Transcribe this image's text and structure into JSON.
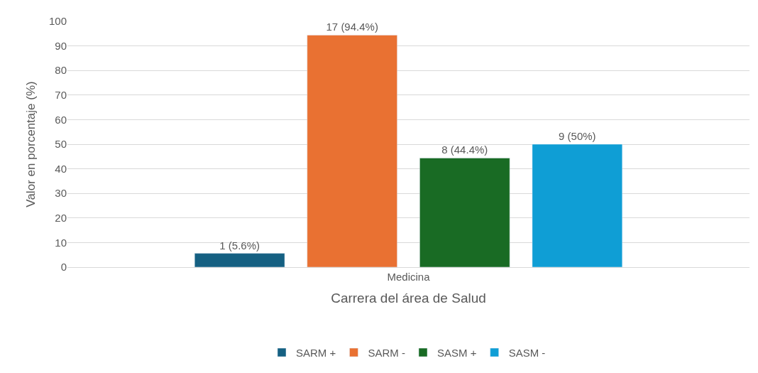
{
  "chart_data": {
    "type": "bar",
    "xlabel": "Carrera del área de Salud",
    "ylabel": "Valor en porcentaje (%)",
    "categories": [
      "Medicina"
    ],
    "series": [
      {
        "name": "SARM +",
        "color": "#156082",
        "values": [
          5.6
        ],
        "value_labels": [
          "1 (5.6%)"
        ]
      },
      {
        "name": "SARM -",
        "color": "#e97132",
        "values": [
          94.4
        ],
        "value_labels": [
          "17 (94.4%)"
        ]
      },
      {
        "name": "SASM +",
        "color": "#196b24",
        "values": [
          44.4
        ],
        "value_labels": [
          "8 (44.4%)"
        ]
      },
      {
        "name": "SASM -",
        "color": "#0f9ed5",
        "values": [
          50
        ],
        "value_labels": [
          "9 (50%)"
        ]
      }
    ],
    "ylim": [
      0,
      100
    ],
    "yticks": [
      0,
      10,
      20,
      30,
      40,
      50,
      60,
      70,
      80,
      90,
      100
    ],
    "grid": "y",
    "legend": "bottom"
  }
}
